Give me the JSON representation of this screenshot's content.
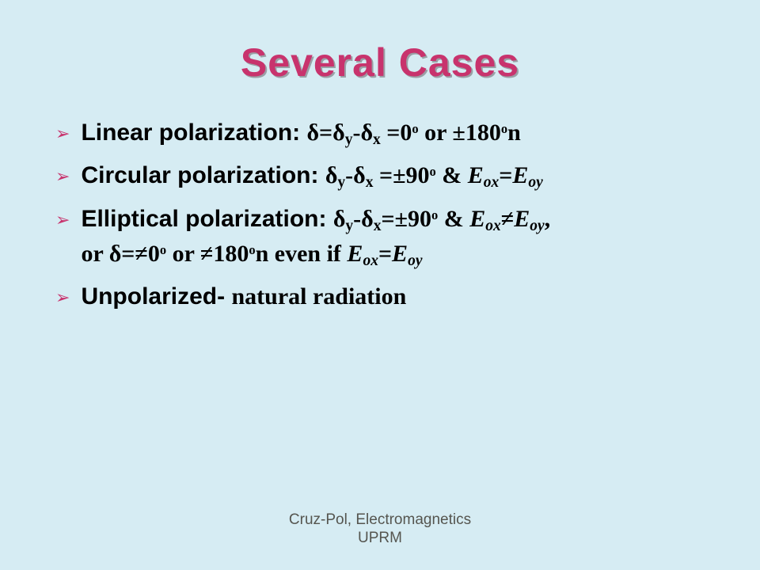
{
  "slide": {
    "title": "Several Cases",
    "background_color": "#d6ecf3",
    "title_color": "#c8336d",
    "title_shadow": "#9aa0a6",
    "bullet_marker_color": "#c8336d",
    "bullets": [
      {
        "label_sans": "Linear polarization: ",
        "formula_html": "δ=δ<sub>y</sub>-δ<sub>x</sub> =0<sup>o</sup> or ±180<sup>o</sup>n"
      },
      {
        "label_sans": "Circular polarization: ",
        "formula_html": "δ<sub>y</sub>-δ<sub>x</sub> =±90<sup>o</sup> &amp; <span class='italic'>E<sub>ox</sub></span>=<span class='italic'>E<sub>oy</sub></span>"
      },
      {
        "label_sans": "Elliptical polarization: ",
        "formula_html": "δ<sub>y</sub>-δ<sub>x</sub>=±90<sup>o</sup> &amp; <span class='italic'>E<sub>ox</sub></span>≠<span class='italic'>E<sub>oy</sub></span>,<br><span class='serif'>or δ=≠0<sup>o</sup> or ≠180<sup>o</sup>n even if <span class='italic'>E<sub>ox</sub></span>=<span class='italic'>E<sub>oy</sub></span></span>"
      },
      {
        "label_sans": "Unpolarized- ",
        "formula_html": "natural radiation"
      }
    ],
    "footer_line1": "Cruz-Pol, Electromagnetics",
    "footer_line2": "UPRM"
  },
  "styles": {
    "title_font_family": "Comic Sans MS",
    "title_font_size_pt": 38,
    "body_font_size_pt": 22,
    "body_sans_font": "Arial",
    "body_serif_font": "Times New Roman",
    "footer_font_size_pt": 14,
    "footer_color": "#55554f"
  }
}
